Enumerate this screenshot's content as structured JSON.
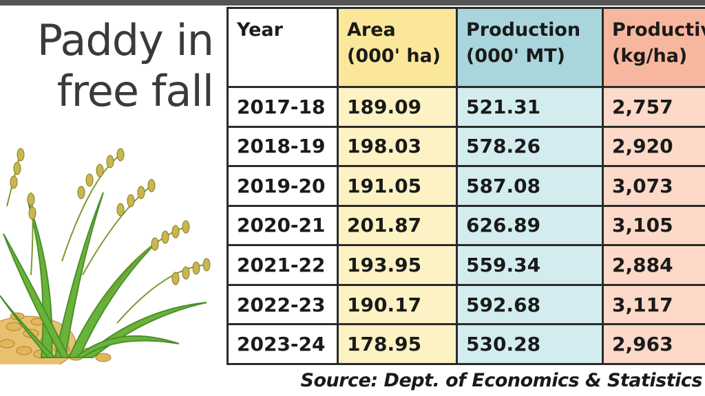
{
  "title": {
    "line1": "Paddy in",
    "line2": "free fall"
  },
  "table": {
    "headers": {
      "year": "Year",
      "area": [
        "Area",
        "(000' ha)"
      ],
      "production": [
        "Production",
        "(000' MT)"
      ],
      "productivity": [
        "Productivity",
        "(kg/ha)"
      ]
    },
    "rows": [
      {
        "year": "2017-18",
        "area": "189.09",
        "production": "521.31",
        "productivity": "2,757"
      },
      {
        "year": "2018-19",
        "area": "198.03",
        "production": "578.26",
        "productivity": "2,920"
      },
      {
        "year": "2019-20",
        "area": "191.05",
        "production": "587.08",
        "productivity": "3,073"
      },
      {
        "year": "2020-21",
        "area": "201.87",
        "production": "626.89",
        "productivity": "3,105"
      },
      {
        "year": "2021-22",
        "area": "193.95",
        "production": "559.34",
        "productivity": "2,884"
      },
      {
        "year": "2022-23",
        "area": "190.17",
        "production": "592.68",
        "productivity": "3,117"
      },
      {
        "year": "2023-24",
        "area": "178.95",
        "production": "530.28",
        "productivity": "2,963"
      }
    ]
  },
  "source": "Source: Dept. of Economics & Statistics",
  "colors": {
    "area": "#fdf2c4",
    "production": "#d3ecef",
    "productivity": "#fcd9c8",
    "rule": "#2a2a2a"
  },
  "illustration": "rice-paddy-icon"
}
